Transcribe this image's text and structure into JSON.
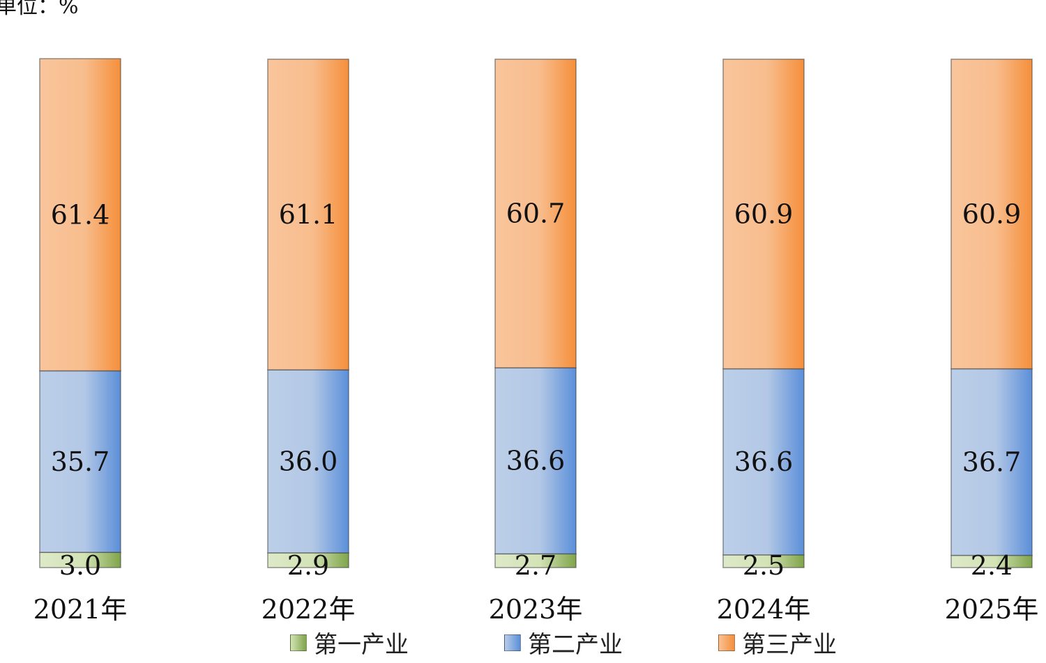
{
  "unit_label": "单位：%",
  "legend": {
    "items": [
      {
        "label": "第一产业",
        "color": "#8fb35a"
      },
      {
        "label": "第二产业",
        "color": "#6f9bd8"
      },
      {
        "label": "第三产业",
        "color": "#f79a4a"
      }
    ]
  },
  "chart_data": {
    "type": "bar",
    "stacked": true,
    "categories": [
      "2021年",
      "2022年",
      "2023年",
      "2024年",
      "2025年"
    ],
    "series": [
      {
        "name": "第一产业",
        "values": [
          3.0,
          2.9,
          2.7,
          2.5,
          2.4
        ],
        "labels": [
          "3.0",
          "2.9",
          "2.7",
          "2.5",
          "2.4"
        ],
        "color": "#8fb35a"
      },
      {
        "name": "第二产业",
        "values": [
          35.7,
          36.0,
          36.6,
          36.6,
          36.7
        ],
        "labels": [
          "35.7",
          "36.0",
          "36.6",
          "36.6",
          "36.7"
        ],
        "color": "#6f9bd8"
      },
      {
        "name": "第三产业",
        "values": [
          61.4,
          61.1,
          60.7,
          60.9,
          60.9
        ],
        "labels": [
          "61.4",
          "61.1",
          "60.7",
          "60.9",
          "60.9"
        ],
        "color": "#f79a4a"
      }
    ],
    "ylim": [
      0,
      100
    ],
    "grid": false,
    "legend_position": "bottom"
  }
}
